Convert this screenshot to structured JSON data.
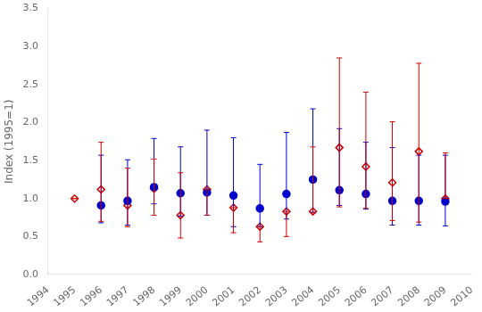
{
  "chart_data": {
    "type": "scatter",
    "y_label": "Index (1995=1)",
    "xlim": [
      1994,
      2010
    ],
    "ylim": [
      0.0,
      3.5
    ],
    "xticks": [
      1994,
      1995,
      1996,
      1997,
      1998,
      1999,
      2000,
      2001,
      2002,
      2003,
      2004,
      2005,
      2006,
      2007,
      2008,
      2009,
      2010
    ],
    "yticks": [
      {
        "value": 0.0,
        "label": "0.0"
      },
      0.5,
      {
        "value": 1.0,
        "label": "1.0"
      },
      1.5,
      {
        "value": 2.0,
        "label": "2.0"
      },
      2.5,
      {
        "value": 3.0,
        "label": "3.0"
      },
      3.5
    ],
    "grid": false,
    "series": [
      {
        "color": "#0000cc",
        "marker": "circle",
        "x": [
          1996,
          1997,
          1998,
          1999,
          2000,
          2001,
          2002,
          2003,
          2004,
          2005,
          2006,
          2007,
          2008,
          2009
        ],
        "values": [
          0.91,
          0.97,
          1.15,
          1.07,
          1.08,
          1.04,
          0.87,
          1.06,
          1.25,
          1.11,
          1.06,
          0.97,
          0.97,
          0.96
        ],
        "err_low": [
          0.23,
          0.32,
          0.22,
          0.3,
          0.3,
          0.41,
          0.24,
          0.33,
          0.43,
          0.2,
          0.2,
          0.32,
          0.32,
          0.32
        ],
        "err_high": [
          0.66,
          0.54,
          0.64,
          0.61,
          0.82,
          0.76,
          0.58,
          0.81,
          0.93,
          0.81,
          0.68,
          0.7,
          0.6,
          0.61
        ]
      },
      {
        "color": "#cc0000",
        "marker": "open-diamond",
        "x": [
          1995,
          1996,
          1997,
          1998,
          1999,
          2000,
          2001,
          2002,
          2003,
          2004,
          2005,
          2006,
          2007,
          2008,
          2009
        ],
        "values": [
          1.0,
          1.12,
          0.91,
          1.13,
          0.78,
          1.12,
          0.88,
          0.63,
          0.83,
          0.83,
          1.67,
          1.42,
          1.21,
          1.62,
          1.0
        ],
        "err_low": [
          0.0,
          0.42,
          0.28,
          0.35,
          0.3,
          0.34,
          0.33,
          0.2,
          0.33,
          0.02,
          0.78,
          0.55,
          0.5,
          0.93,
          0.0
        ],
        "err_high": [
          0.0,
          0.62,
          0.49,
          0.39,
          0.56,
          0.0,
          0.0,
          0.0,
          0.0,
          0.85,
          1.18,
          0.98,
          0.8,
          1.16,
          0.6
        ]
      }
    ]
  }
}
